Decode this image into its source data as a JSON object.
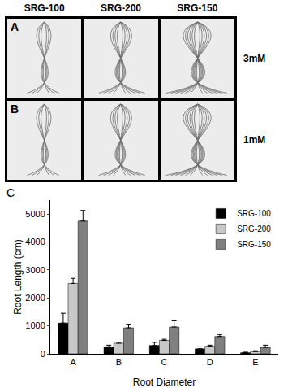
{
  "panels": {
    "columns": [
      "SRG-100",
      "SRG-200",
      "SRG-150"
    ],
    "rows": [
      {
        "letter": "A",
        "label": "3mM"
      },
      {
        "letter": "B",
        "label": "1mM"
      }
    ]
  },
  "chart_data": {
    "type": "bar",
    "annotations": [
      "C"
    ],
    "x_label": "Root Diameter",
    "y_label": "Root Length (cm)",
    "categories": [
      "A",
      "B",
      "C",
      "D",
      "E"
    ],
    "series": [
      {
        "name": "SRG-100",
        "color": "#000000",
        "values": [
          1100,
          250,
          300,
          180,
          40
        ],
        "errors": [
          350,
          60,
          110,
          70,
          20
        ]
      },
      {
        "name": "SRG-200",
        "color": "#c8c8c8",
        "values": [
          2520,
          380,
          480,
          270,
          80
        ],
        "errors": [
          180,
          40,
          40,
          40,
          30
        ]
      },
      {
        "name": "SRG-150",
        "color": "#808080",
        "values": [
          4750,
          930,
          960,
          620,
          230
        ],
        "errors": [
          380,
          130,
          220,
          70,
          80
        ]
      }
    ],
    "ylim": [
      0,
      5500
    ],
    "yticks": [
      0,
      1000,
      2000,
      3000,
      4000,
      5000
    ],
    "legend": "upper right",
    "grid": false
  }
}
